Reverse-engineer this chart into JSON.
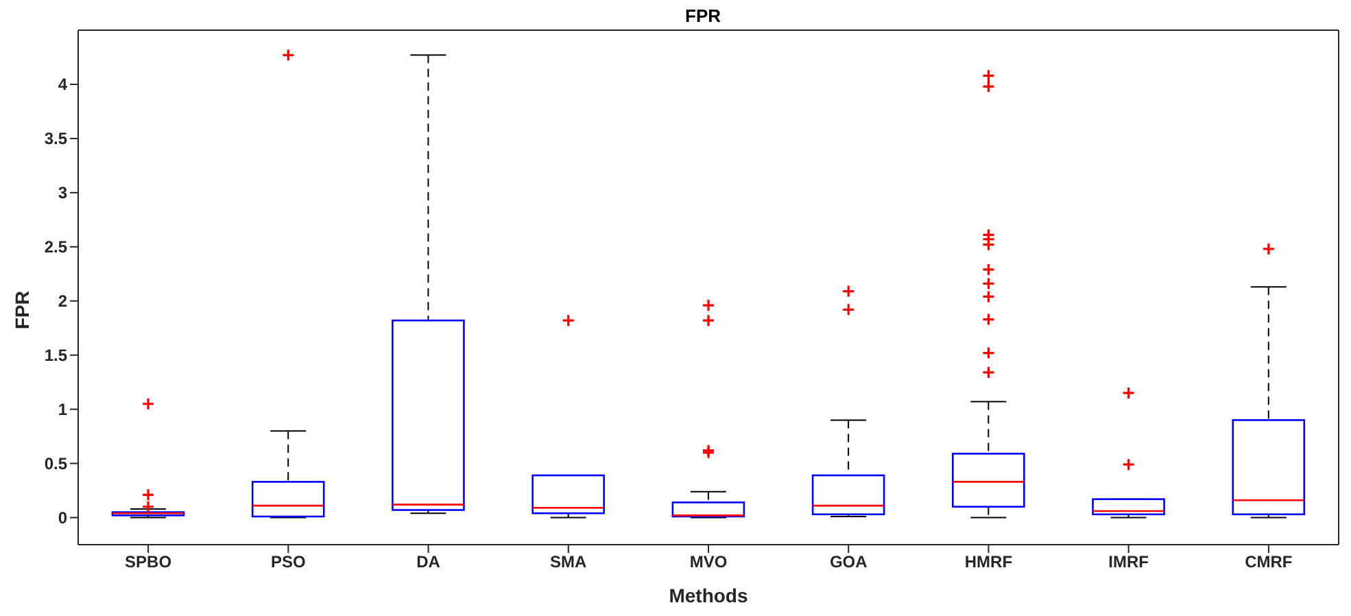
{
  "chart_data": {
    "type": "box",
    "title": "FPR",
    "xlabel": "Methods",
    "ylabel": "FPR",
    "categories": [
      "SPBO",
      "PSO",
      "DA",
      "SMA",
      "MVO",
      "GOA",
      "HMRF",
      "IMRF",
      "CMRF"
    ],
    "color": "#0000ff",
    "boxes": [
      {
        "low": 0,
        "q1": 0.02,
        "median": 0.04,
        "q3": 0.05,
        "high": 0.08,
        "outliers": [
          1.05,
          0.21,
          0.1
        ]
      },
      {
        "low": 0,
        "q1": 0.01,
        "median": 0.11,
        "q3": 0.33,
        "high": 0.8,
        "outliers": [
          4.27
        ]
      },
      {
        "low": 0.04,
        "q1": 0.07,
        "median": 0.12,
        "q3": 1.82,
        "high": 4.27
      },
      {
        "low": 0,
        "q1": 0.04,
        "median": 0.09,
        "q3": 0.39,
        "high": 0.39,
        "outliers": [
          1.82
        ]
      },
      {
        "low": 0,
        "q1": 0.01,
        "median": 0.02,
        "q3": 0.14,
        "high": 0.24,
        "outliers": [
          1.96,
          1.82,
          0.62,
          0.6
        ]
      },
      {
        "low": 0.01,
        "q1": 0.03,
        "median": 0.11,
        "q3": 0.39,
        "high": 0.9,
        "outliers": [
          2.09,
          1.92
        ]
      },
      {
        "low": 0,
        "q1": 0.1,
        "median": 0.33,
        "q3": 0.59,
        "high": 1.07,
        "outliers": [
          4.08,
          3.98,
          2.61,
          2.57,
          2.52,
          2.29,
          2.16,
          2.04,
          1.83,
          1.52,
          1.34
        ]
      },
      {
        "low": 0,
        "q1": 0.03,
        "median": 0.06,
        "q3": 0.17,
        "high": 0.17,
        "outliers": [
          1.15,
          0.49
        ]
      },
      {
        "low": 0,
        "q1": 0.03,
        "median": 0.16,
        "q3": 0.9,
        "high": 2.13,
        "outliers": [
          2.48
        ]
      }
    ],
    "ylim": [
      -0.25,
      4.5
    ],
    "yticks": [
      0,
      0.5,
      1,
      1.5,
      2,
      2.5,
      3,
      3.5,
      4
    ],
    "grid": false
  }
}
